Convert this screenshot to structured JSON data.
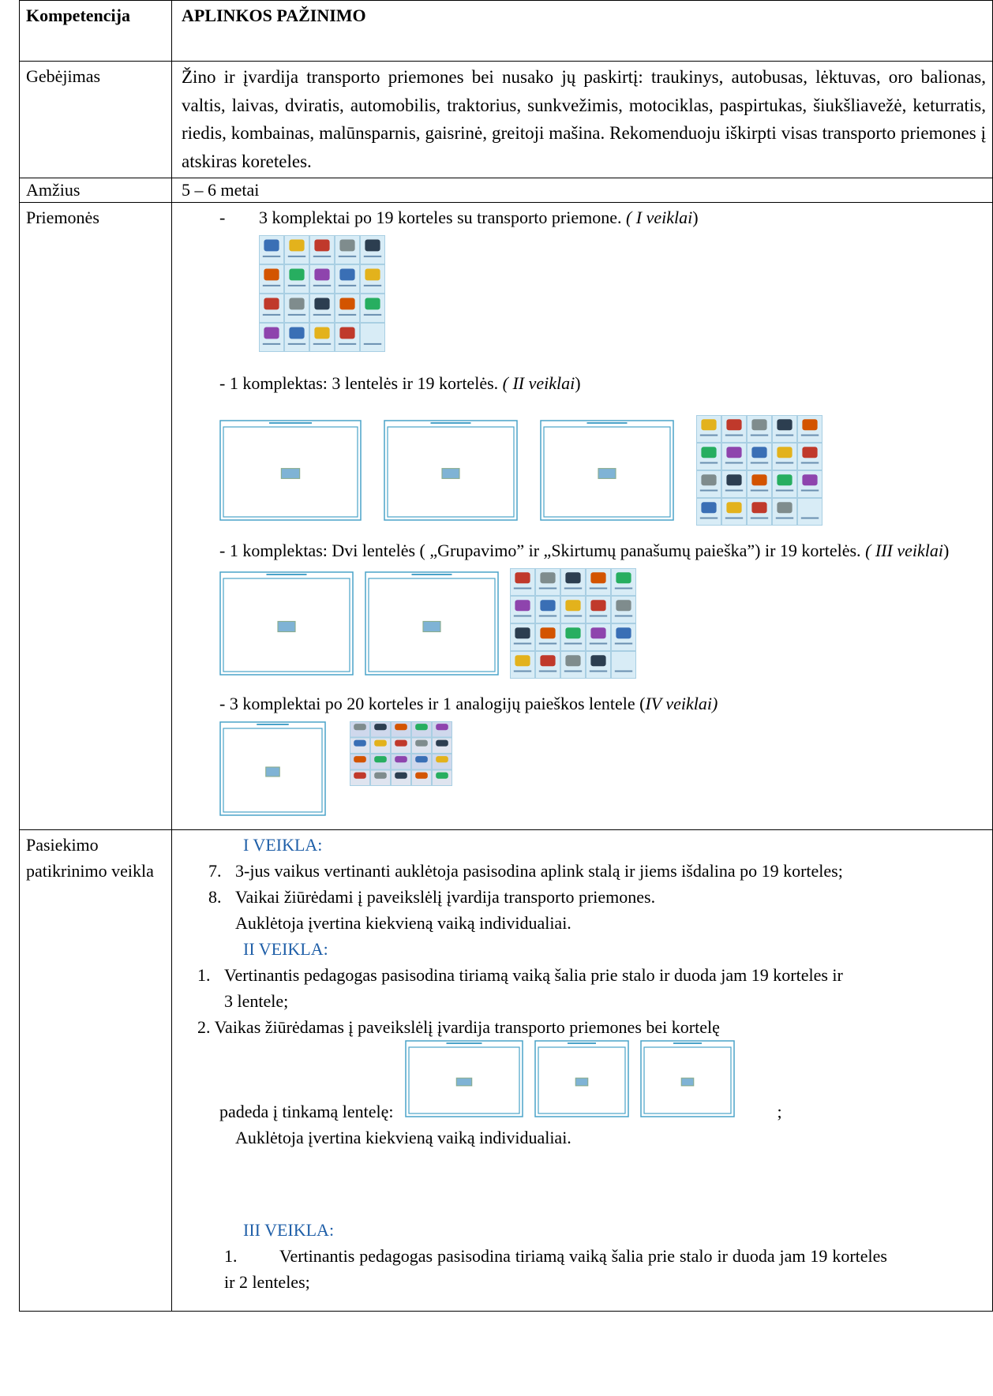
{
  "table": {
    "rows": [
      {
        "label": "Kompetencija",
        "content": "APLINKOS PAŽINIMO"
      },
      {
        "label": "Gebėjimas",
        "content": "Žino ir įvardija transporto priemones bei nusako jų paskirtį: traukinys, autobusas, lėktuvas, oro balionas, valtis, laivas, dviratis, automobilis, traktorius, sunkvežimis, motociklas, paspirtukas, šiukšliavežė, keturratis, riedis, kombainas, malūnsparnis, gaisrinė, greitoji mašina. Rekomenduoju iškirpti visas transporto priemones į atskiras koreteles."
      },
      {
        "label": "Amžius",
        "content": "5 – 6  metai"
      },
      {
        "label": "Priemonės",
        "items": [
          {
            "bullet": "-",
            "text": "3  komplektai  po 19  korteles  su transporto priemone.",
            "note": "( I veiklai"
          },
          {
            "text": "- 1 komplektas: 3 lentelės ir 19 kortelės.",
            "note": "( II veiklai"
          },
          {
            "text": "- 1 komplektas:  Dvi lentelės ( „Grupavimo” ir „Skirtumų panašumų paieška”) ir 19 kortelės.",
            "note": "( III veiklai"
          },
          {
            "text": "- 3  komplektai po 20 korteles ir  1 analogijų paieškos lentele (",
            "note": "IV veiklai)"
          }
        ]
      },
      {
        "label": "Pasiekimo patikrinimo veikla",
        "activities": [
          {
            "title": "I VEIKLA:",
            "steps": [
              {
                "number": "7.",
                "text": "3-jus vaikus vertinanti auklėtoja pasisodina aplink stalą ir jiems išdalina po 19 korteles;"
              },
              {
                "number": "8.",
                "text": "Vaikai žiūrėdami į  paveikslėlį  įvardija transporto priemones."
              }
            ],
            "note": "Auklėtoja įvertina kiekvieną vaiką individualiai."
          },
          {
            "title": "II VEIKLA:",
            "steps": [
              {
                "number": "1.",
                "text": "Vertinantis pedagogas pasisodina tiriamą vaiką šalia prie stalo ir duoda jam 19 korteles ir 3 lentele;"
              },
              {
                "number": "2.",
                "text": "Vaikas žiūrėdamas į  paveikslėlį  įvardija transporto priemones bei kortelę"
              }
            ],
            "placement": "padeda į tinkamą lentelę:",
            "placement_end": ";",
            "note": "Auklėtoja įvertina kiekvieną vaiką individualiai."
          },
          {
            "title": "III VEIKLA:",
            "steps": [
              {
                "number": "1.",
                "text": "Vertinantis pedagogas pasisodina tiriamą vaiką šalia prie stalo ir duoda jam  19 korteles ir 2 lenteles;"
              }
            ]
          }
        ]
      }
    ]
  }
}
